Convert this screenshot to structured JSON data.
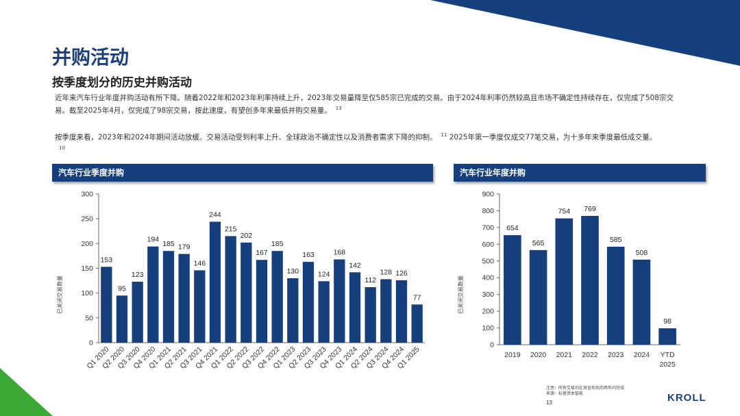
{
  "page": {
    "title": "并购活动",
    "subtitle": "按季度划分的历史并购活动",
    "paragraph1": "近年来汽车行业年度并购活动有所下降。随着2022年和2023年利率持续上升，2023年交易量降至仅585宗已完成的交易。由于2024年利率仍然较高且市场不确定性持续存在，仅完成了508宗交易。截至2025年4月，仅完成了98宗交易，按此速度，有望创多年来最低并购交易量。",
    "paragraph1_ref": "13",
    "paragraph2": "按季度来看，2023年和2024年期间活动放缓。交易活动受到利率上升、全球政治不确定性以及消费者需求下降的抑制。",
    "paragraph2_ref1": "11",
    "paragraph2b": "2025年第一季度仅成交77笔交易，为十多年来季度最低成交量。",
    "paragraph2_ref2": "10",
    "footer_note1": "注意：所有交易均在其宣布后的两年内完成",
    "footer_note2": "来源：标普资本智能",
    "page_number": "13",
    "logo": "KROLL",
    "colors": {
      "bar": "#163f7e",
      "title": "#1b3f7a",
      "accent_green": "#3aa935"
    }
  },
  "chart_data": [
    {
      "type": "bar",
      "title": "汽车行业季度并购",
      "ylabel": "已关闭交易数量",
      "xlabel": "",
      "ylim": [
        0,
        300
      ],
      "yticks": [
        0,
        50,
        100,
        150,
        200,
        250,
        300
      ],
      "categories": [
        "Q1 2020",
        "Q2 2020",
        "Q3 2020",
        "Q4 2020",
        "Q1 2021",
        "Q2 2021",
        "Q3 2021",
        "Q4 2021",
        "Q1 2022",
        "Q2 2022",
        "Q3 2022",
        "Q4 2022",
        "Q1 2023",
        "Q2 2023",
        "Q3 2023",
        "Q4 2023",
        "Q1 2024",
        "Q2 2024",
        "Q3 2024",
        "Q4 2024",
        "Q1 2025"
      ],
      "values": [
        153,
        95,
        123,
        194,
        185,
        179,
        146,
        244,
        215,
        202,
        167,
        185,
        130,
        163,
        124,
        168,
        142,
        112,
        128,
        126,
        77
      ],
      "grid": false,
      "legend": "none"
    },
    {
      "type": "bar",
      "title": "汽车行业年度并购",
      "ylabel": "已关闭交易数量",
      "xlabel": "",
      "ylim": [
        0,
        900
      ],
      "yticks": [
        0,
        100,
        200,
        300,
        400,
        500,
        600,
        700,
        800,
        900
      ],
      "categories": [
        "2019",
        "2020",
        "2021",
        "2022",
        "2023",
        "2024",
        "YTD 2025"
      ],
      "values": [
        654,
        565,
        754,
        769,
        585,
        508,
        98
      ],
      "grid": false,
      "legend": "none"
    }
  ]
}
